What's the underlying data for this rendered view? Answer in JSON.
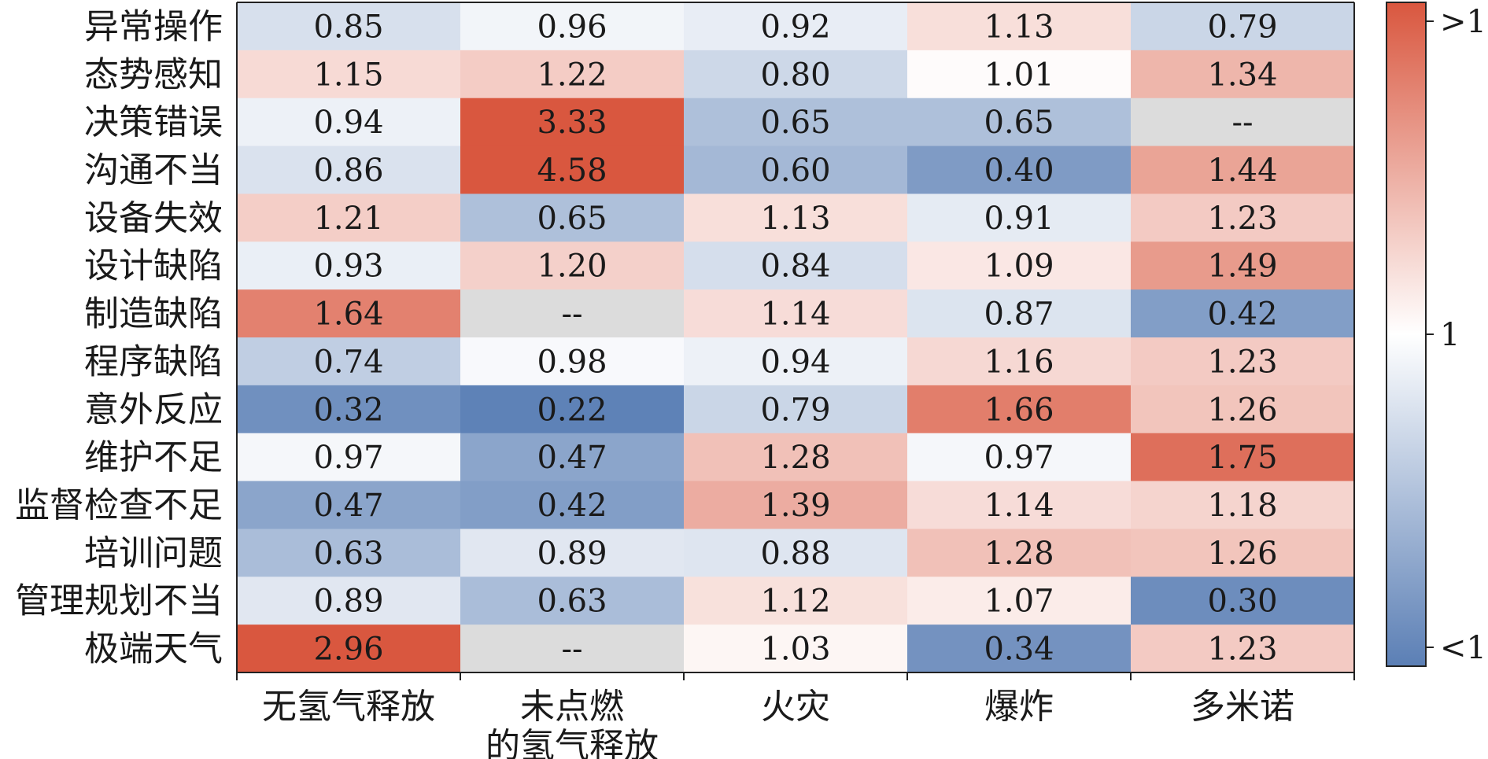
{
  "chart_data": {
    "type": "heatmap",
    "rows": [
      "异常操作",
      "态势感知",
      "决策错误",
      "沟通不当",
      "设备失效",
      "设计缺陷",
      "制造缺陷",
      "程序缺陷",
      "意外反应",
      "维护不足",
      "监督检查不足",
      "培训问题",
      "管理规划不当",
      "极端天气"
    ],
    "columns": [
      {
        "line1": "无氢气释放",
        "line2": ""
      },
      {
        "line1": "未点燃",
        "line2": "的氢气释放"
      },
      {
        "line1": "火灾",
        "line2": ""
      },
      {
        "line1": "爆炸",
        "line2": ""
      },
      {
        "line1": "多米诺",
        "line2": ""
      }
    ],
    "values": [
      [
        0.85,
        0.96,
        0.92,
        1.13,
        0.79
      ],
      [
        1.15,
        1.22,
        0.8,
        1.01,
        1.34
      ],
      [
        0.94,
        3.33,
        0.65,
        0.65,
        null
      ],
      [
        0.86,
        4.58,
        0.6,
        0.4,
        1.44
      ],
      [
        1.21,
        0.65,
        1.13,
        0.91,
        1.23
      ],
      [
        0.93,
        1.2,
        0.84,
        1.09,
        1.49
      ],
      [
        1.64,
        null,
        1.14,
        0.87,
        0.42
      ],
      [
        0.74,
        0.98,
        0.94,
        1.16,
        1.23
      ],
      [
        0.32,
        0.22,
        0.79,
        1.66,
        1.26
      ],
      [
        0.97,
        0.47,
        1.28,
        0.97,
        1.75
      ],
      [
        0.47,
        0.42,
        1.39,
        1.14,
        1.18
      ],
      [
        0.63,
        0.89,
        0.88,
        1.28,
        1.26
      ],
      [
        0.89,
        0.63,
        1.12,
        1.07,
        0.3
      ],
      [
        2.96,
        null,
        1.03,
        0.34,
        1.23
      ]
    ],
    "missing_label": "--",
    "colorbar": {
      "top_label": ">1",
      "mid_label": "1",
      "bottom_label": "<1"
    },
    "colors": {
      "high": "#d9573f",
      "mid": "#ffffff",
      "low": "#5b7fb5",
      "missing": "#dcdcdc"
    },
    "legend": "right"
  }
}
